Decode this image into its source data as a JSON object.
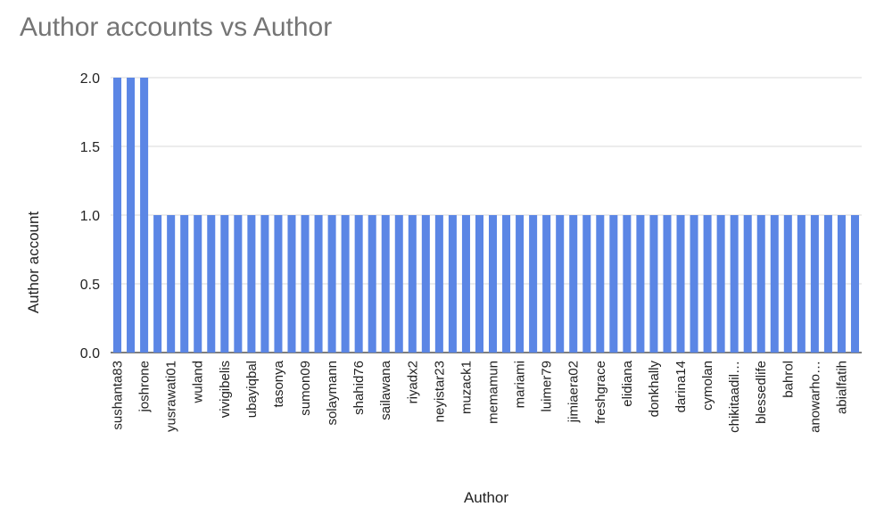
{
  "chart_data": {
    "type": "bar",
    "title": "Author accounts vs Author",
    "xlabel": "Author",
    "ylabel": "Author account",
    "ylim": [
      0,
      2
    ],
    "yticks": [
      "0.0",
      "0.5",
      "1.0",
      "1.5",
      "2.0"
    ],
    "ytick_values": [
      0,
      0.5,
      1,
      1.5,
      2
    ],
    "bar_color": "#5b86e5",
    "grid": true,
    "category_count": 56,
    "labeled_every": 2,
    "tick_labels": [
      "sushanta83",
      "joshrone",
      "yusrawati01",
      "wuland",
      "vivigibelis",
      "ubayiqbal",
      "tasonya",
      "sumon09",
      "solaymann",
      "shahid76",
      "sailawana",
      "riyadx2",
      "neyistar23",
      "muzack1",
      "memamun",
      "mariami",
      "luimer79",
      "jimiaera02",
      "freshgrace",
      "elidiana",
      "donkhally",
      "darina14",
      "cymolan",
      "chikitaadil…",
      "blessedlife",
      "bahrol",
      "anowarho…",
      "abialfatih"
    ],
    "values": [
      2,
      2,
      2,
      1,
      1,
      1,
      1,
      1,
      1,
      1,
      1,
      1,
      1,
      1,
      1,
      1,
      1,
      1,
      1,
      1,
      1,
      1,
      1,
      1,
      1,
      1,
      1,
      1,
      1,
      1,
      1,
      1,
      1,
      1,
      1,
      1,
      1,
      1,
      1,
      1,
      1,
      1,
      1,
      1,
      1,
      1,
      1,
      1,
      1,
      1,
      1,
      1,
      1,
      1,
      1,
      1
    ]
  }
}
